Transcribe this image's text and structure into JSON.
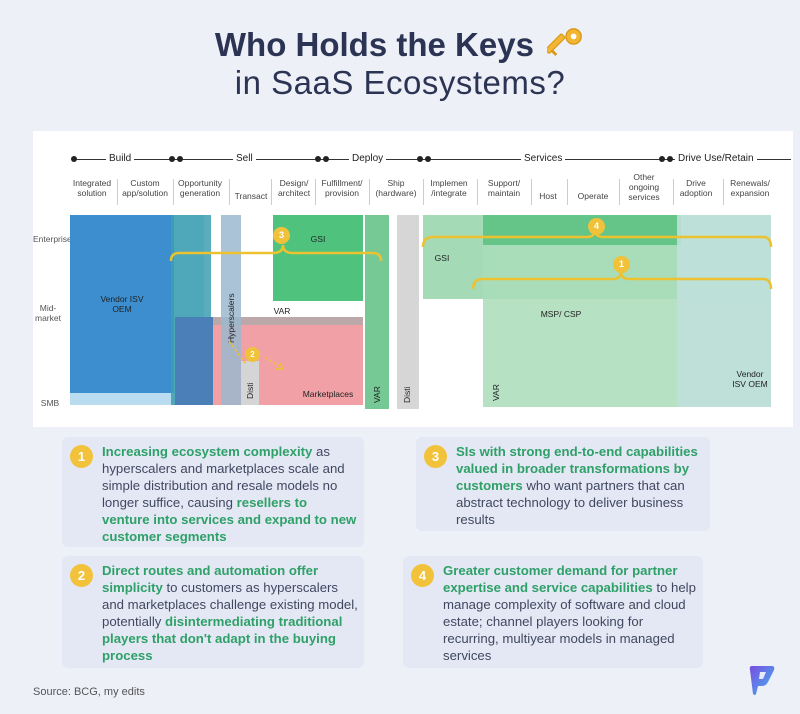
{
  "title": {
    "line1": "Who Holds the Keys",
    "line2": "in SaaS Ecosystems?",
    "icon": "key-icon"
  },
  "phases": [
    "Build",
    "Sell",
    "Deploy",
    "Services",
    "Drive Use/Retain"
  ],
  "columns": [
    "Integrated solution",
    "Custom app/solution",
    "Opportunity generation",
    "Transact",
    "Design/ architect",
    "Fulfillment/ provision",
    "Ship (hardware)",
    "Implemen /integrate",
    "Support/ maintain",
    "Host",
    "Operate",
    "Other ongoing services",
    "Drive adoption",
    "Renewals/ expansion"
  ],
  "rows": [
    "Enterprise",
    "Mid- market",
    "SMB"
  ],
  "blocks": {
    "vendor_left": "Vendor ISV OEM",
    "gsi_left": "GSI",
    "var_mid": "VAR",
    "hyperscalers": "Hyperscalers",
    "marketplaces": "Marketplaces",
    "disti_left": "Disti",
    "var_vertical": "VAR",
    "disti_vertical": "Disti",
    "gsi_right": "GSI",
    "msp_csp": "MSP/ CSP",
    "var_right": "VAR",
    "vendor_right": "Vendor ISV OEM"
  },
  "badges": [
    "1",
    "2",
    "3",
    "4"
  ],
  "insights": [
    {
      "number": "1",
      "parts": [
        {
          "text": "Increasing ecosystem complexity",
          "highlight": true
        },
        {
          "text": " as hyperscalers and marketplaces scale and simple distribution and resale models no longer suffice, causing ",
          "highlight": false
        },
        {
          "text": "resellers to venture into services and expand to new customer segments",
          "highlight": true
        }
      ]
    },
    {
      "number": "2",
      "parts": [
        {
          "text": "Direct routes and automation offer simplicity",
          "highlight": true
        },
        {
          "text": " to customers as hyperscalers and marketplaces challenge existing model, potentially ",
          "highlight": false
        },
        {
          "text": "disintermediating traditional players that don't adapt in the buying process",
          "highlight": true
        }
      ]
    },
    {
      "number": "3",
      "parts": [
        {
          "text": "SIs with strong end-to-end capabilities valued in broader transformations by customers",
          "highlight": true
        },
        {
          "text": " who want partners that can abstract technology to deliver business results",
          "highlight": false
        }
      ]
    },
    {
      "number": "4",
      "parts": [
        {
          "text": "Greater customer demand for partner expertise and service capabilities",
          "highlight": true
        },
        {
          "text": " to help manage complexity of software and cloud estate; channel players looking for recurring, multiyear models in managed services",
          "highlight": false
        }
      ]
    }
  ],
  "source": "Source: BCG, my edits",
  "colors": {
    "accent_green": "#2fa068",
    "badge_yellow": "#f2c23b",
    "vendor_blue": "#3b8fd0",
    "gsi_green": "#4fc27e",
    "marketplace_pink": "#f2a2a8",
    "services_green": "#a9dcb8"
  }
}
